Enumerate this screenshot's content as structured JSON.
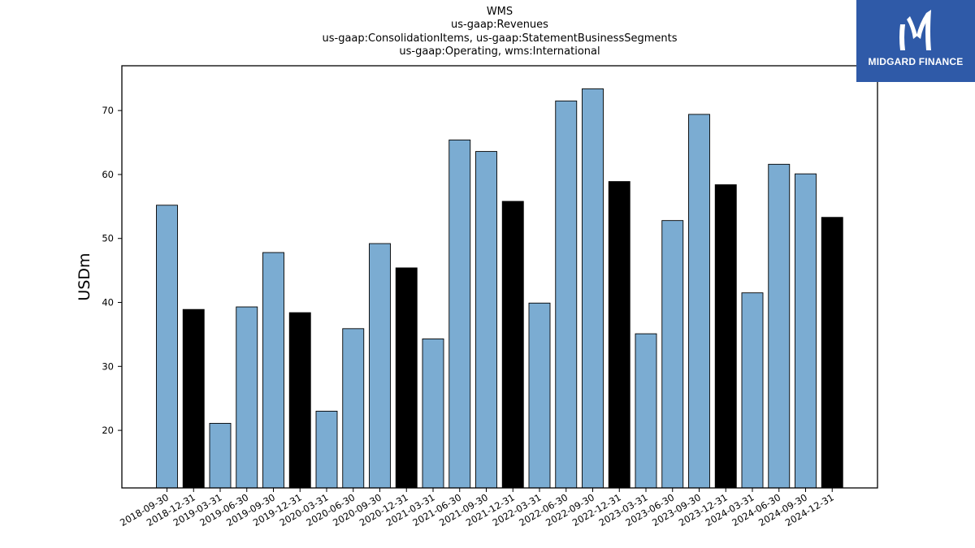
{
  "title": {
    "line1": "WMS",
    "line2": "us-gaap:Revenues",
    "line3": "us-gaap:ConsolidationItems, us-gaap:StatementBusinessSegments",
    "line4": "us-gaap:Operating, wms:International"
  },
  "logo": {
    "text": "MIDGARD FINANCE",
    "background": "#2f5aa8"
  },
  "chart_data": {
    "type": "bar",
    "ylabel": "USDm",
    "xlabel": "",
    "ylim": [
      11,
      77
    ],
    "yticks": [
      20,
      30,
      40,
      50,
      60,
      70
    ],
    "grid": false,
    "colors": {
      "quarter": "#7bacd2",
      "year_end": "#000000"
    },
    "categories": [
      "2018-09-30",
      "2018-12-31",
      "2019-03-31",
      "2019-06-30",
      "2019-09-30",
      "2019-12-31",
      "2020-03-31",
      "2020-06-30",
      "2020-09-30",
      "2020-12-31",
      "2021-03-31",
      "2021-06-30",
      "2021-09-30",
      "2021-12-31",
      "2022-03-31",
      "2022-06-30",
      "2022-09-30",
      "2022-12-31",
      "2023-03-31",
      "2023-06-30",
      "2023-09-30",
      "2023-12-31",
      "2024-03-31",
      "2024-06-30",
      "2024-09-30",
      "2024-12-31"
    ],
    "values": [
      55.2,
      38.9,
      21.1,
      39.3,
      47.8,
      38.4,
      23.0,
      35.9,
      49.2,
      45.4,
      34.3,
      65.4,
      63.6,
      55.8,
      39.9,
      71.5,
      73.4,
      58.9,
      35.1,
      52.8,
      69.4,
      58.4,
      41.5,
      61.6,
      60.1,
      53.3
    ],
    "year_end": [
      false,
      true,
      false,
      false,
      false,
      true,
      false,
      false,
      false,
      true,
      false,
      false,
      false,
      true,
      false,
      false,
      false,
      true,
      false,
      false,
      false,
      true,
      false,
      false,
      false,
      true
    ]
  }
}
